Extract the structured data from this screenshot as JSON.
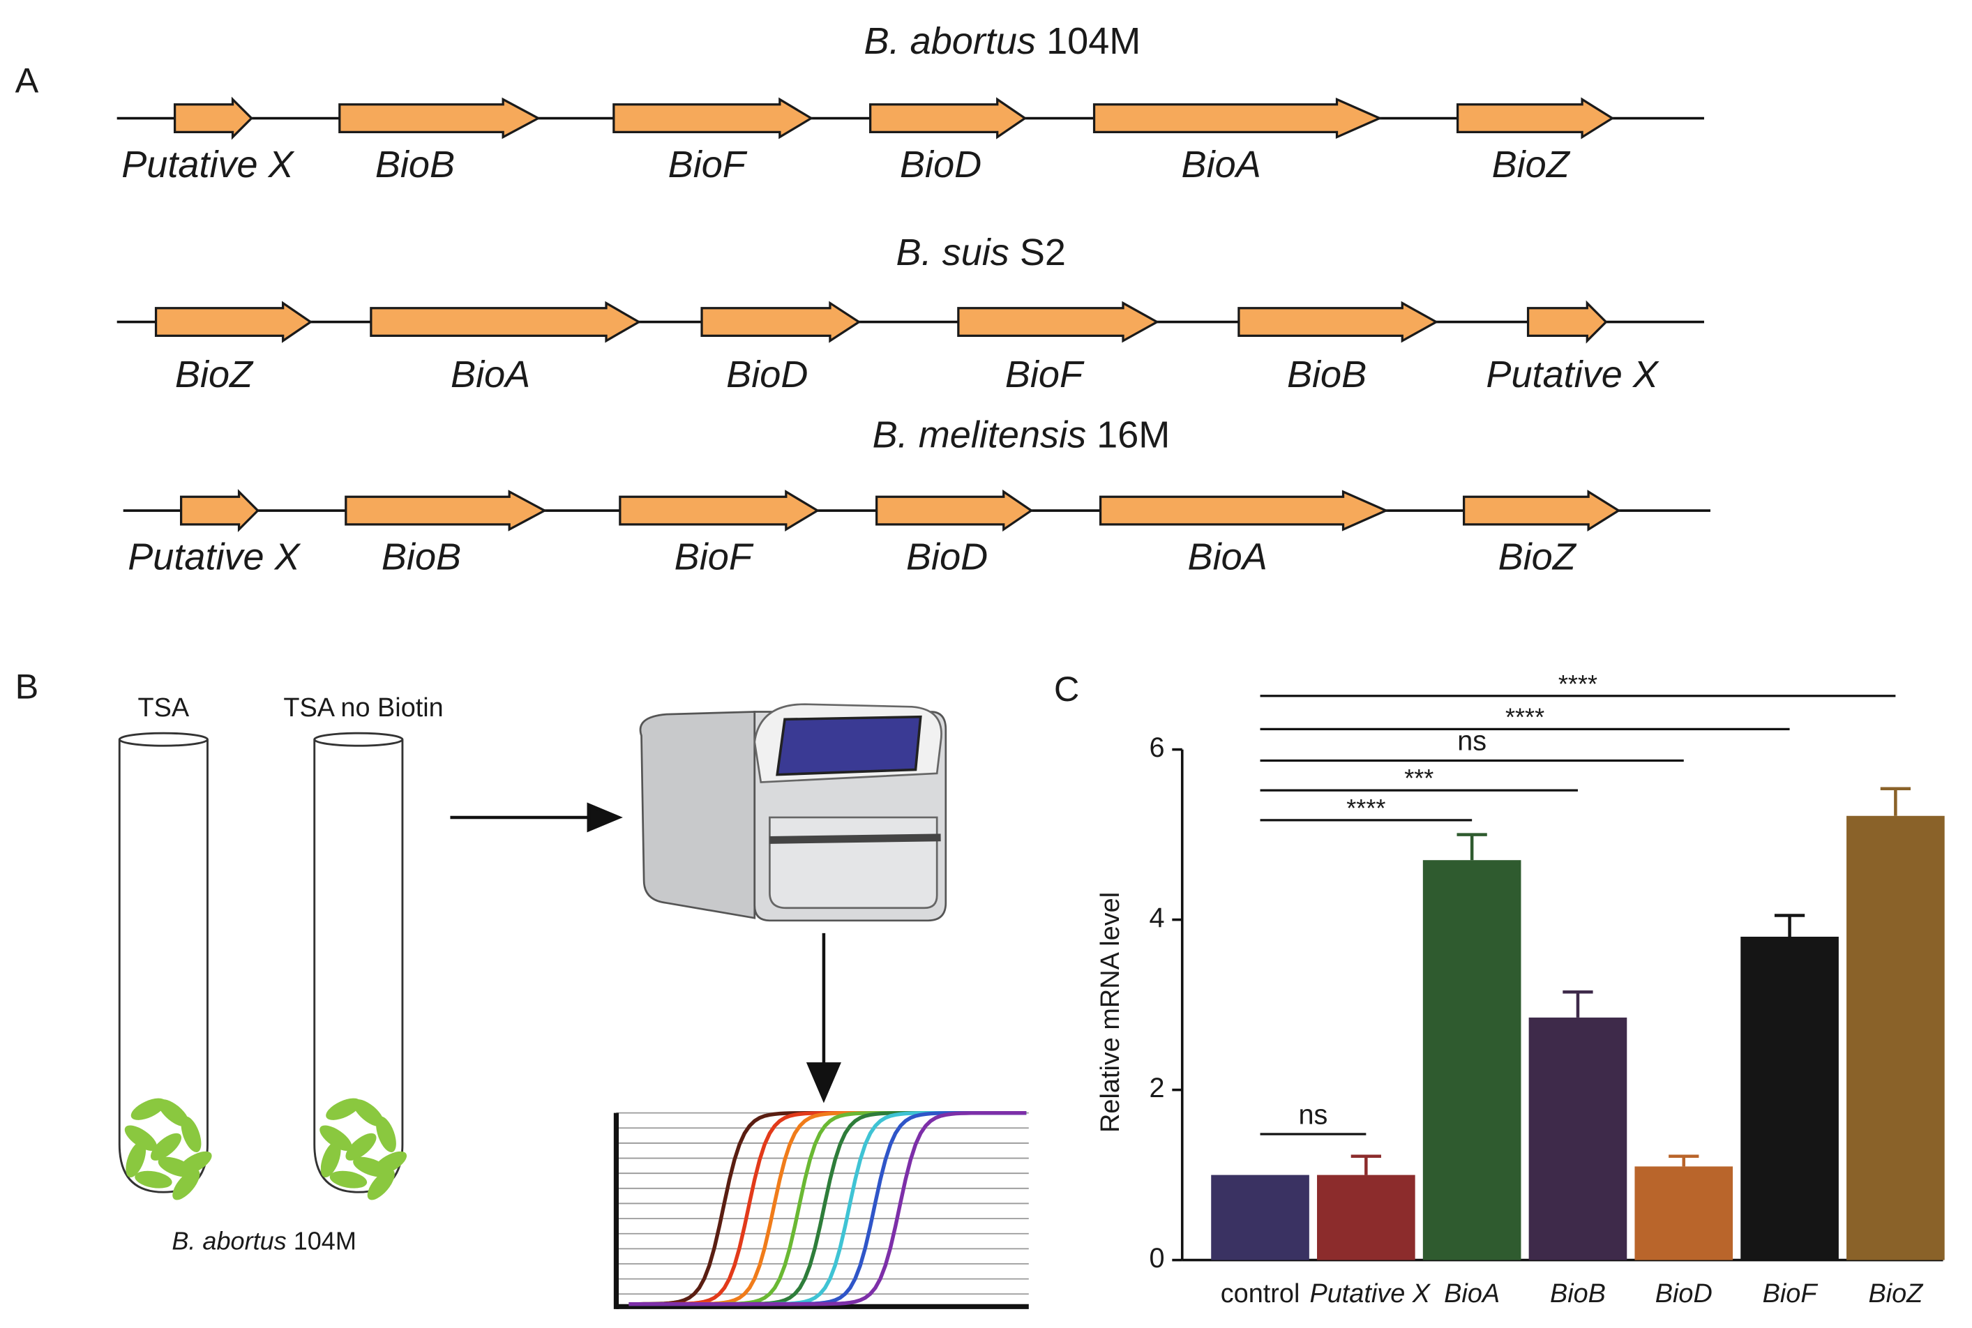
{
  "panel_a": {
    "label": "A",
    "genomes": [
      {
        "species": "B. abortus",
        "strain": "104M",
        "genes": [
          "Putative X",
          "BioB",
          "BioF",
          "BioD",
          "BioA",
          "BioZ"
        ]
      },
      {
        "species": "B. suis",
        "strain": "S2",
        "genes": [
          "BioZ",
          "BioA",
          "BioD",
          "BioF",
          "BioB",
          "Putative X"
        ]
      },
      {
        "species": "B. melitensis",
        "strain": "16M",
        "genes": [
          "Putative X",
          "BioB",
          "BioF",
          "BioD",
          "BioA",
          "BioZ"
        ]
      }
    ]
  },
  "panel_b": {
    "label": "B",
    "tube_labels": [
      "TSA",
      "TSA no Biotin"
    ],
    "species": "B. abortus",
    "strain": "104M"
  },
  "chart_data": {
    "type": "bar",
    "label": "C",
    "y_label": "Relative mRNA level",
    "categories": [
      "control",
      "Putative X",
      "BioA",
      "BioB",
      "BioD",
      "BioF",
      "BioZ"
    ],
    "values": [
      1.0,
      1.0,
      4.7,
      2.85,
      1.1,
      3.8,
      5.22
    ],
    "errors": [
      0,
      0.22,
      0.3,
      0.3,
      0.12,
      0.25,
      0.32
    ],
    "colors": [
      "#3a3262",
      "#8c2c2c",
      "#2f5b2f",
      "#3e2a4a",
      "#b9652b",
      "#151515",
      "#8a6229"
    ],
    "ylim": [
      0,
      6
    ],
    "yticks": [
      0,
      2,
      4,
      6
    ],
    "significance": [
      {
        "from": 0,
        "to": 1,
        "label": "ns",
        "y": 1.48
      },
      {
        "from": 0,
        "to": 2,
        "label": "****",
        "y": 5.17
      },
      {
        "from": 0,
        "to": 3,
        "label": "***",
        "y": 5.52
      },
      {
        "from": 0,
        "to": 4,
        "label": "ns",
        "y": 5.87
      },
      {
        "from": 0,
        "to": 5,
        "label": "****",
        "y": 6.24
      },
      {
        "from": 0,
        "to": 6,
        "label": "****",
        "y": 6.63
      }
    ]
  }
}
